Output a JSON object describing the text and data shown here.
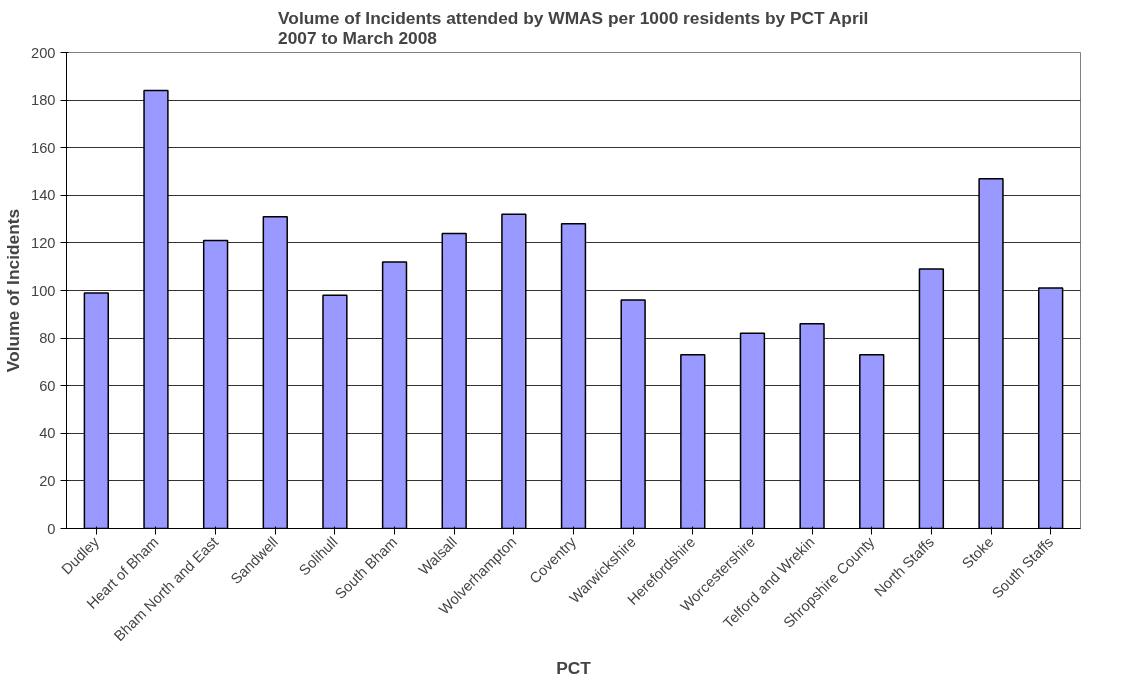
{
  "chart_data": {
    "type": "bar",
    "title": "Volume of Incidents attended by WMAS per 1000 residents by PCT April 2007 to March 2008",
    "xlabel": "PCT",
    "ylabel": "Volume of Incidents",
    "categories": [
      "Dudley",
      "Heart of Bham",
      "Bham North and East",
      "Sandwell",
      "Solihull",
      "South Bham",
      "Walsall",
      "Wolverhampton",
      "Coventry",
      "Warwickshire",
      "Herefordshire",
      "Worcestershire",
      "Telford and Wrekin",
      "Shropshire County",
      "North Staffs",
      "Stoke",
      "South Staffs"
    ],
    "values": [
      99,
      184,
      121,
      131,
      98,
      112,
      124,
      132,
      128,
      96,
      73,
      82,
      86,
      73,
      109,
      147,
      101
    ],
    "color": "#9999ff",
    "ylim": [
      0,
      200
    ],
    "yticks": [
      0,
      20,
      40,
      60,
      80,
      100,
      120,
      140,
      160,
      180,
      200
    ],
    "grid": "y"
  }
}
